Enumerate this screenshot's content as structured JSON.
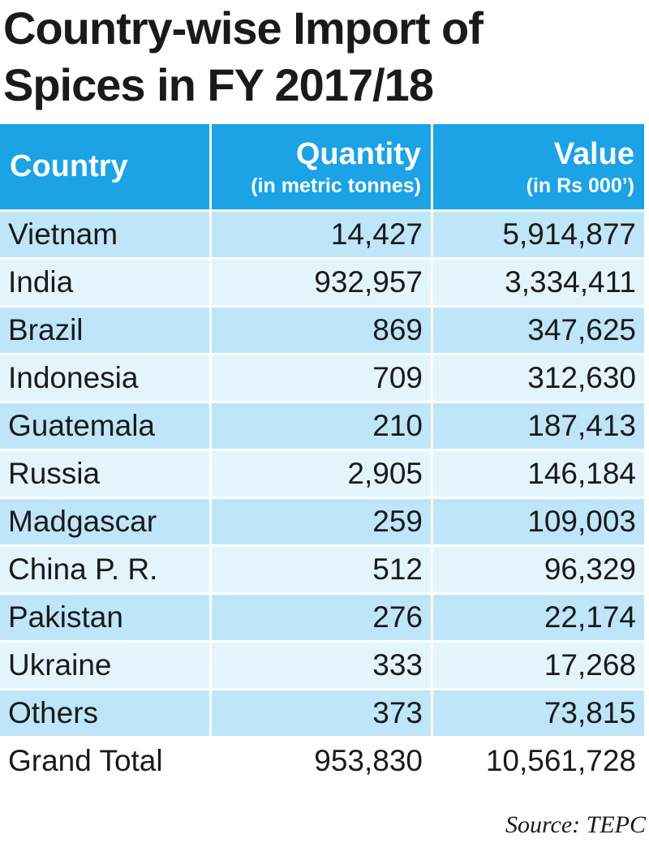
{
  "title": {
    "line1": "Country-wise Import of",
    "line2": "Spices in FY 2017/18"
  },
  "colors": {
    "header_bg": "#1ba3e6",
    "row_dark": "#bfe6f8",
    "row_light": "#e4f4fc"
  },
  "chart_data": {
    "type": "table",
    "columns": [
      {
        "label": "Country",
        "sublabel": ""
      },
      {
        "label": "Quantity",
        "sublabel": "(in metric tonnes)"
      },
      {
        "label": "Value",
        "sublabel": "(in Rs 000’)"
      }
    ],
    "rows": [
      {
        "country": "Vietnam",
        "quantity": "14,427",
        "value": "5,914,877"
      },
      {
        "country": "India",
        "quantity": "932,957",
        "value": "3,334,411"
      },
      {
        "country": "Brazil",
        "quantity": "869",
        "value": "347,625"
      },
      {
        "country": "Indonesia",
        "quantity": "709",
        "value": "312,630"
      },
      {
        "country": "Guatemala",
        "quantity": "210",
        "value": "187,413"
      },
      {
        "country": "Russia",
        "quantity": "2,905",
        "value": "146,184"
      },
      {
        "country": "Madgascar",
        "quantity": "259",
        "value": "109,003"
      },
      {
        "country": "China P. R.",
        "quantity": "512",
        "value": "96,329"
      },
      {
        "country": "Pakistan",
        "quantity": "276",
        "value": "22,174"
      },
      {
        "country": "Ukraine",
        "quantity": "333",
        "value": "17,268"
      },
      {
        "country": "Others",
        "quantity": "373",
        "value": "73,815"
      },
      {
        "country": "Grand Total",
        "quantity": "953,830",
        "value": "10,561,728"
      }
    ]
  },
  "source": "Source: TEPC"
}
